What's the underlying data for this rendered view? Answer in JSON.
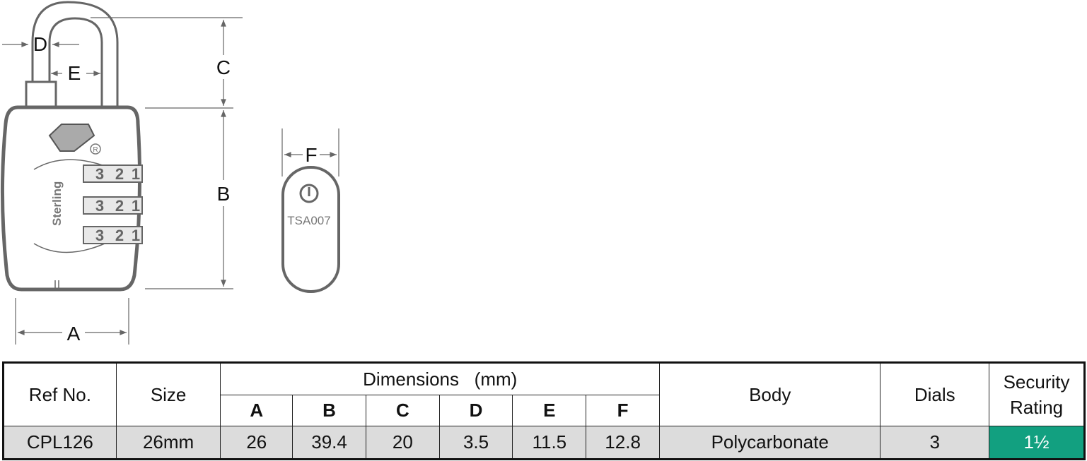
{
  "diagram": {
    "labels": {
      "A": "A",
      "B": "B",
      "C": "C",
      "D": "D",
      "E": "E",
      "F": "F"
    },
    "brand": "Sterling",
    "registered_mark": "R",
    "dial_digits": [
      "3",
      "2",
      "1"
    ],
    "tsa_text": "TSA007"
  },
  "table": {
    "headers": {
      "ref_no": "Ref No.",
      "size": "Size",
      "dimensions": "Dimensions   (mm)",
      "dim_cols": [
        "A",
        "B",
        "C",
        "D",
        "E",
        "F"
      ],
      "body": "Body",
      "dials": "Dials",
      "security_line1": "Security",
      "security_line2": "Rating"
    },
    "row": {
      "ref_no": "CPL126",
      "size": "26mm",
      "dims": [
        "26",
        "39.4",
        "20",
        "3.5",
        "11.5",
        "12.8"
      ],
      "body": "Polycarbonate",
      "dials": "3",
      "security_rating": "1½"
    },
    "colors": {
      "row_bg": "#dcdcdc",
      "rating_bg": "#12a080"
    }
  }
}
